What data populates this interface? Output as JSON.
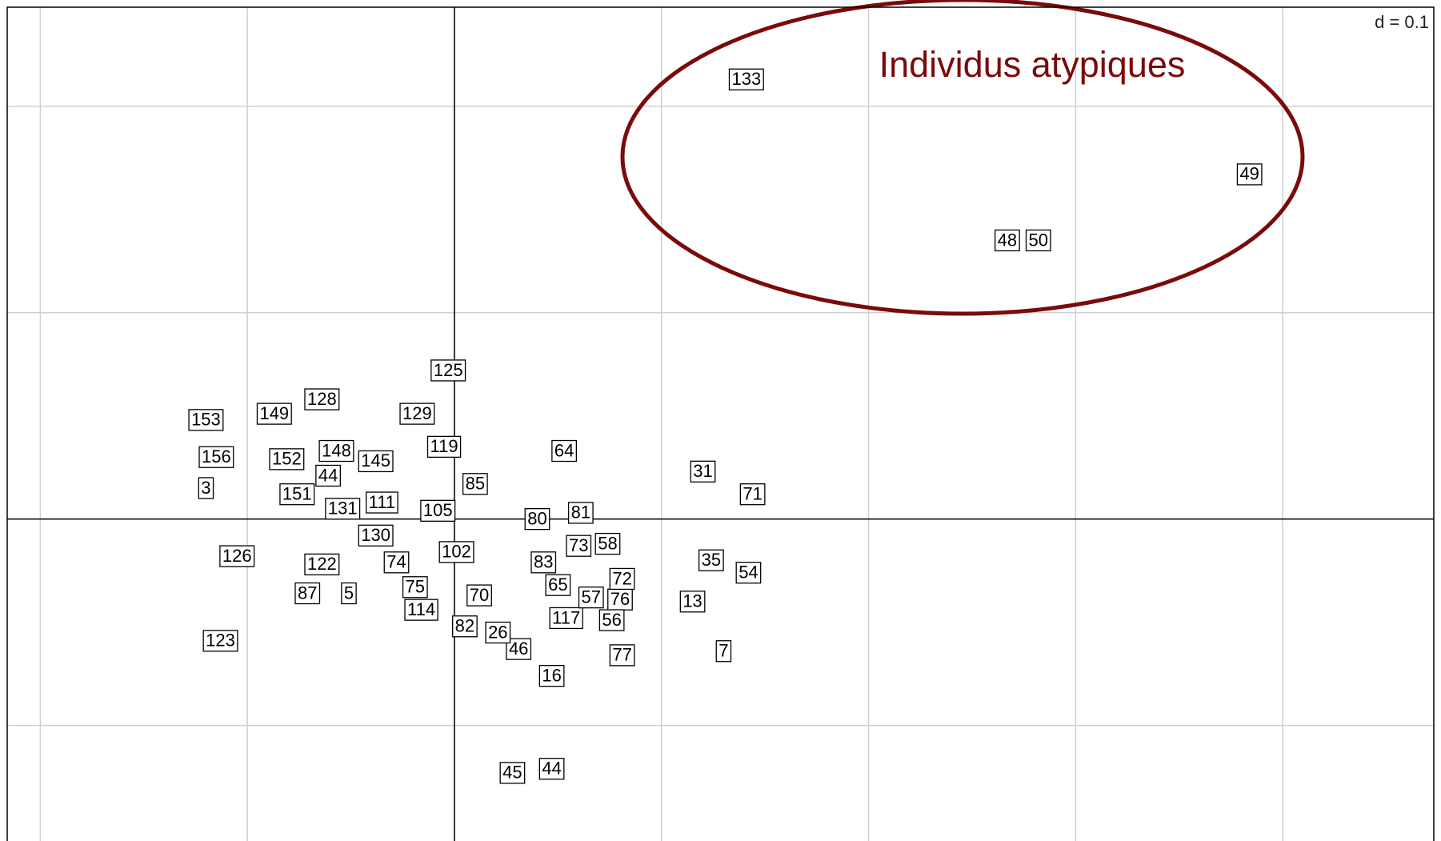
{
  "chart_data": {
    "type": "scatter",
    "annotations": [
      "d = 0.1",
      "Individus atypiques"
    ],
    "labels": [
      "133",
      "49",
      "48",
      "50",
      "125",
      "128",
      "129",
      "149",
      "153",
      "119",
      "64",
      "148",
      "156",
      "152",
      "145",
      "31",
      "3",
      "71",
      "151",
      "131",
      "111",
      "105",
      "80",
      "81",
      "130",
      "73",
      "58",
      "102",
      "126",
      "122",
      "35",
      "83",
      "54",
      "65",
      "87",
      "5",
      "75",
      "70",
      "76",
      "13",
      "114",
      "117",
      "56",
      "82",
      "123",
      "46",
      "7",
      "77",
      "16",
      "45",
      "44",
      "44",
      "85",
      "74",
      "26",
      "57",
      "72"
    ],
    "x": [
      0.141,
      0.384,
      0.267,
      0.282,
      -0.003,
      -0.064,
      -0.018,
      -0.087,
      -0.12,
      -0.005,
      0.053,
      -0.057,
      -0.115,
      -0.081,
      -0.038,
      0.12,
      -0.12,
      0.144,
      -0.076,
      -0.054,
      -0.035,
      -0.008,
      0.04,
      0.061,
      -0.038,
      0.06,
      0.074,
      0.001,
      -0.105,
      -0.064,
      0.124,
      0.043,
      0.142,
      0.05,
      -0.071,
      -0.051,
      -0.019,
      0.012,
      0.08,
      0.115,
      -0.016,
      0.054,
      0.076,
      0.005,
      -0.113,
      0.031,
      0.13,
      0.081,
      0.047,
      0.028,
      0.047,
      -0.061,
      0.01,
      -0.028,
      0.021,
      0.066,
      0.081
    ],
    "values": [
      0.213,
      0.167,
      0.135,
      0.135,
      0.072,
      0.058,
      0.051,
      0.051,
      0.048,
      0.035,
      0.033,
      0.033,
      0.03,
      0.029,
      0.028,
      0.023,
      0.015,
      0.012,
      0.012,
      0.005,
      0.008,
      0.004,
      0.0,
      0.003,
      -0.008,
      -0.013,
      -0.012,
      -0.016,
      -0.018,
      -0.022,
      -0.02,
      -0.021,
      -0.026,
      -0.032,
      -0.036,
      -0.036,
      -0.033,
      -0.037,
      -0.039,
      -0.04,
      -0.044,
      -0.048,
      -0.049,
      -0.052,
      -0.059,
      -0.063,
      -0.064,
      -0.066,
      -0.076,
      -0.123,
      -0.121,
      0.021,
      0.017,
      -0.021,
      -0.055,
      -0.038,
      -0.029
    ],
    "xlim": [
      -0.216,
      0.473
    ],
    "ylim": [
      -0.156,
      0.248
    ],
    "xticks": [
      -0.2,
      -0.1,
      0,
      0.1,
      0.2,
      0.3,
      0.4
    ],
    "yticks": [
      -0.1,
      0,
      0.1,
      0.2
    ],
    "grid": true,
    "color": "#7b0a0a"
  }
}
